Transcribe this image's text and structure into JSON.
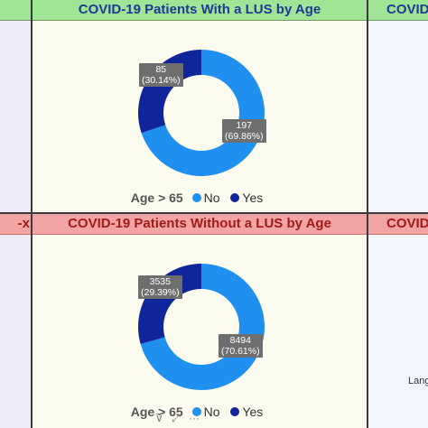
{
  "top_row": {
    "center_title": "COVID-19 Patients With a LUS by Age",
    "right_title": "COVID"
  },
  "bottom_row": {
    "left_title": "-x",
    "center_title": "COVID-19 Patients Without a LUS by Age",
    "right_title": "COVID-"
  },
  "right_panel": {
    "cut_text": "Lang"
  },
  "legend": {
    "title": "Age > 65",
    "items": [
      {
        "label": "No",
        "color": "#1f8ff0"
      },
      {
        "label": "Yes",
        "color": "#10259a"
      }
    ]
  },
  "toolbar": {
    "filter_icon": "filter-icon",
    "focus_icon": "focus-mode-icon",
    "more_icon": "more-options-icon",
    "filter_glyph": "⊽",
    "focus_glyph": "⤢",
    "more_glyph": "···"
  },
  "chart_data": [
    {
      "type": "pie",
      "title": "COVID-19 Patients With a LUS by Age",
      "legend_title": "Age > 65",
      "categories": [
        "No",
        "Yes"
      ],
      "values": [
        197,
        85
      ],
      "percent_labels": [
        "(69.86%)",
        "(30.14%)"
      ],
      "colors": [
        "#1f8ff0",
        "#10259a"
      ],
      "legend_position": "bottom"
    },
    {
      "type": "pie",
      "title": "COVID-19 Patients Without a LUS by Age",
      "legend_title": "Age > 65",
      "categories": [
        "No",
        "Yes"
      ],
      "values": [
        8494,
        3535
      ],
      "percent_labels": [
        "(70.61%)",
        "(29.39%)"
      ],
      "colors": [
        "#1f8ff0",
        "#10259a"
      ],
      "legend_position": "bottom"
    }
  ]
}
